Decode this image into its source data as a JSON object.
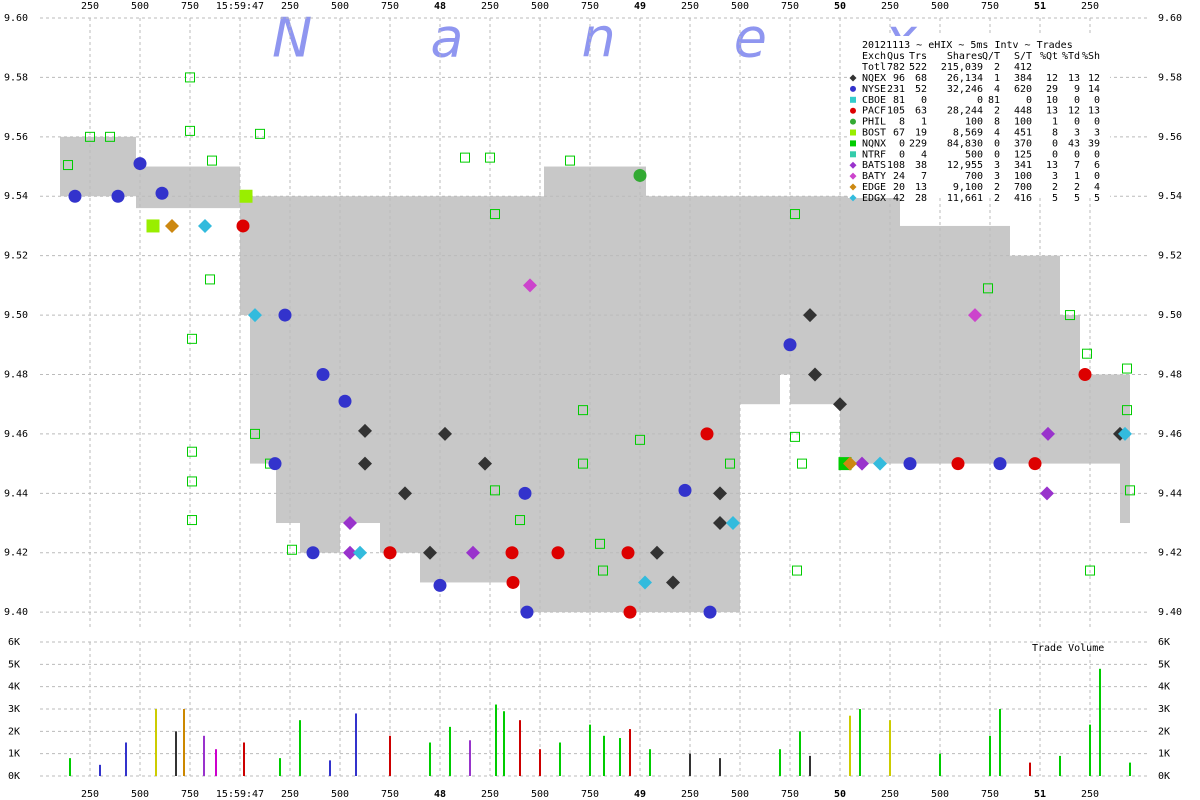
{
  "chart_data": [
    {
      "type": "scatter",
      "watermark": "Nanex",
      "xlim": [
        46.0,
        51.55
      ],
      "xticks": [
        {
          "value": 46.25,
          "label": "250"
        },
        {
          "value": 46.5,
          "label": "500"
        },
        {
          "value": 46.75,
          "label": "750"
        },
        {
          "value": 47,
          "label": "15:59:47"
        },
        {
          "value": 47.25,
          "label": "250"
        },
        {
          "value": 47.5,
          "label": "500"
        },
        {
          "value": 47.75,
          "label": "750"
        },
        {
          "value": 48,
          "label": "48"
        },
        {
          "value": 48.25,
          "label": "250"
        },
        {
          "value": 48.5,
          "label": "500"
        },
        {
          "value": 48.75,
          "label": "750"
        },
        {
          "value": 49,
          "label": "49"
        },
        {
          "value": 49.25,
          "label": "250"
        },
        {
          "value": 49.5,
          "label": "500"
        },
        {
          "value": 49.75,
          "label": "750"
        },
        {
          "value": 50,
          "label": "50"
        },
        {
          "value": 50.25,
          "label": "250"
        },
        {
          "value": 50.5,
          "label": "500"
        },
        {
          "value": 50.75,
          "label": "750"
        },
        {
          "value": 51,
          "label": "51"
        },
        {
          "value": 51.25,
          "label": "250"
        }
      ],
      "ylim": [
        9.395,
        9.6
      ],
      "yticks": [
        {
          "value": 9.4,
          "label": "9.40"
        },
        {
          "value": 9.42,
          "label": "9.42"
        },
        {
          "value": 9.44,
          "label": "9.44"
        },
        {
          "value": 9.46,
          "label": "9.46"
        },
        {
          "value": 9.48,
          "label": "9.48"
        },
        {
          "value": 9.5,
          "label": "9.50"
        },
        {
          "value": 9.52,
          "label": "9.52"
        },
        {
          "value": 9.54,
          "label": "9.54"
        },
        {
          "value": 9.56,
          "label": "9.56"
        },
        {
          "value": 9.58,
          "label": "9.58"
        },
        {
          "value": 9.6,
          "label": "9.60"
        }
      ],
      "grid": true,
      "nbbo": {
        "color": "#c8c8c8",
        "x": [
          46.1,
          46.48,
          47.0,
          47.05,
          47.18,
          47.3,
          47.5,
          47.7,
          47.9,
          48.15,
          48.4,
          48.52,
          49.0,
          49.03,
          49.5,
          49.7,
          49.75,
          50.0,
          50.3,
          50.85,
          51.1,
          51.2,
          51.4
        ],
        "bid": [
          9.54,
          9.536,
          9.5,
          9.45,
          9.43,
          9.42,
          9.43,
          9.42,
          9.41,
          9.41,
          9.4,
          9.4,
          9.4,
          9.4,
          9.47,
          9.48,
          9.47,
          9.45,
          9.45,
          9.45,
          9.45,
          9.45,
          9.43
        ],
        "ask": [
          9.56,
          9.55,
          9.54,
          9.54,
          9.54,
          9.54,
          9.54,
          9.54,
          9.54,
          9.54,
          9.54,
          9.55,
          9.55,
          9.54,
          9.54,
          9.54,
          9.54,
          9.54,
          9.53,
          9.52,
          9.5,
          9.48,
          9.48
        ]
      },
      "quotes": {
        "color": "#00cc00",
        "x": [
          46.14,
          46.25,
          46.35,
          46.75,
          46.75,
          46.86,
          47.1,
          46.85,
          46.76,
          46.76,
          46.76,
          46.76,
          47.075,
          47.15,
          47.26,
          48.125,
          48.25,
          48.275,
          48.4,
          48.715,
          48.65,
          48.8,
          48.815,
          49.0,
          49.775,
          49.775,
          49.81,
          49.785,
          51.15,
          51.235,
          51.25,
          51.435,
          51.435,
          51.45,
          50.74,
          49.45,
          48.715,
          48.275
        ],
        "y": [
          9.5505,
          9.56,
          9.56,
          9.58,
          9.562,
          9.552,
          9.561,
          9.512,
          9.492,
          9.454,
          9.444,
          9.431,
          9.46,
          9.45,
          9.421,
          9.553,
          9.553,
          9.534,
          9.431,
          9.468,
          9.552,
          9.423,
          9.414,
          9.458,
          9.534,
          9.459,
          9.45,
          9.414,
          9.5,
          9.487,
          9.414,
          9.482,
          9.468,
          9.441,
          9.509,
          9.45,
          9.45,
          9.441
        ]
      },
      "stats": {
        "title": "20121113 ~ eHIX ~ 5ms Intv ~ Trades",
        "columns": [
          "Exch",
          "Qus",
          "Trs",
          "Shares",
          "Q/T",
          "S/T",
          "%Qt",
          "%Td",
          "%Sh"
        ],
        "total": {
          "name": "Totl",
          "cells": [
            "782",
            "522",
            "215,039",
            "2",
            "412"
          ]
        }
      },
      "series": [
        {
          "name": "NQEX",
          "color": "#333333",
          "marker": "diamond",
          "cells": [
            "96",
            "68",
            "26,134",
            "1",
            "384",
            "12",
            "13",
            "12"
          ],
          "x": [
            47.625,
            47.625,
            47.825,
            47.95,
            48.025,
            48.225,
            49.085,
            49.165,
            49.4,
            49.4,
            49.85,
            50.0,
            49.875,
            51.4
          ],
          "y": [
            9.461,
            9.45,
            9.44,
            9.42,
            9.46,
            9.45,
            9.42,
            9.41,
            9.44,
            9.43,
            9.5,
            9.47,
            9.48,
            9.46
          ]
        },
        {
          "name": "NYSE",
          "color": "#3333cc",
          "marker": "circle",
          "cells": [
            "231",
            "52",
            "32,246",
            "4",
            "620",
            "29",
            "9",
            "14"
          ],
          "x": [
            46.175,
            46.39,
            46.5,
            46.61,
            47.225,
            47.175,
            47.365,
            47.525,
            47.415,
            48.0,
            48.435,
            48.425,
            49.225,
            49.35,
            49.75,
            50.35,
            50.8
          ],
          "y": [
            9.54,
            9.54,
            9.551,
            9.541,
            9.5,
            9.45,
            9.42,
            9.471,
            9.48,
            9.409,
            9.4,
            9.44,
            9.441,
            9.4,
            9.49,
            9.45,
            9.45
          ]
        },
        {
          "name": "CBOE",
          "color": "#33cccc",
          "marker": "square",
          "cells": [
            "81",
            "0",
            "0",
            "81",
            "0",
            "10",
            "0",
            "0"
          ]
        },
        {
          "name": "PACF",
          "color": "#dd0000",
          "marker": "circle",
          "cells": [
            "105",
            "63",
            "28,244",
            "2",
            "448",
            "13",
            "12",
            "13"
          ],
          "x": [
            47.015,
            47.75,
            48.36,
            48.365,
            48.59,
            48.94,
            48.95,
            50.59,
            50.975,
            51.225,
            49.335
          ],
          "y": [
            9.53,
            9.42,
            9.42,
            9.41,
            9.42,
            9.42,
            9.4,
            9.45,
            9.45,
            9.48,
            9.46
          ]
        },
        {
          "name": "PHIL",
          "color": "#33aa33",
          "marker": "circle",
          "cells": [
            "8",
            "1",
            "100",
            "8",
            "100",
            "1",
            "0",
            "0"
          ],
          "x": [
            49.0
          ],
          "y": [
            9.547
          ]
        },
        {
          "name": "BOST",
          "color": "#99ee00",
          "marker": "square",
          "cells": [
            "67",
            "19",
            "8,569",
            "4",
            "451",
            "8",
            "3",
            "3"
          ],
          "x": [
            46.565,
            47.03
          ],
          "y": [
            9.53,
            9.54
          ]
        },
        {
          "name": "NQNX",
          "color": "#00cc00",
          "marker": "square",
          "cells": [
            "0",
            "229",
            "84,830",
            "0",
            "370",
            "0",
            "43",
            "39"
          ],
          "x": [
            50.025
          ],
          "y": [
            9.45
          ]
        },
        {
          "name": "NTRF",
          "color": "#33ccaa",
          "marker": "square",
          "cells": [
            "0",
            "4",
            "500",
            "0",
            "125",
            "0",
            "0",
            "0"
          ]
        },
        {
          "name": "BATS",
          "color": "#9933cc",
          "marker": "diamond",
          "cells": [
            "108",
            "38",
            "12,955",
            "3",
            "341",
            "13",
            "7",
            "6"
          ],
          "x": [
            47.55,
            47.55,
            48.165,
            51.035,
            51.04,
            50.11
          ],
          "y": [
            9.43,
            9.42,
            9.42,
            9.44,
            9.46,
            9.45
          ]
        },
        {
          "name": "BATY",
          "color": "#cc44cc",
          "marker": "diamond",
          "cells": [
            "24",
            "7",
            "700",
            "3",
            "100",
            "3",
            "1",
            "0"
          ],
          "x": [
            48.45,
            50.675
          ],
          "y": [
            9.51,
            9.5
          ]
        },
        {
          "name": "EDGE",
          "color": "#cc8811",
          "marker": "diamond",
          "cells": [
            "20",
            "13",
            "9,100",
            "2",
            "700",
            "2",
            "2",
            "4"
          ],
          "x": [
            46.66,
            50.05
          ],
          "y": [
            9.53,
            9.45
          ]
        },
        {
          "name": "EDGX",
          "color": "#33bbdd",
          "marker": "diamond",
          "cells": [
            "42",
            "28",
            "11,661",
            "2",
            "416",
            "5",
            "5",
            "5"
          ],
          "x": [
            47.075,
            46.825,
            47.6,
            49.025,
            49.465,
            50.2,
            51.425
          ],
          "y": [
            9.5,
            9.53,
            9.42,
            9.41,
            9.43,
            9.45,
            9.46
          ]
        }
      ]
    },
    {
      "type": "bar",
      "label": "Trade Volume",
      "ylim": [
        0,
        6000
      ],
      "yticks": [
        {
          "value": 0,
          "label": "0K"
        },
        {
          "value": 1000,
          "label": "1K"
        },
        {
          "value": 2000,
          "label": "2K"
        },
        {
          "value": 3000,
          "label": "3K"
        },
        {
          "value": 4000,
          "label": "4K"
        },
        {
          "value": 5000,
          "label": "5K"
        },
        {
          "value": 6000,
          "label": "6K"
        }
      ],
      "x": [
        46.15,
        46.3,
        46.43,
        46.58,
        46.68,
        46.72,
        46.82,
        46.88,
        47.02,
        47.2,
        47.3,
        47.45,
        47.58,
        47.75,
        47.95,
        48.05,
        48.15,
        48.28,
        48.32,
        48.4,
        48.5,
        48.6,
        48.75,
        48.82,
        48.9,
        48.95,
        49.05,
        49.25,
        49.4,
        49.7,
        49.8,
        49.85,
        50.05,
        50.1,
        50.25,
        50.5,
        50.75,
        50.8,
        50.95,
        51.1,
        51.25,
        51.3,
        51.45
      ],
      "values": [
        800,
        500,
        1500,
        3000,
        2000,
        3000,
        1800,
        1200,
        1500,
        800,
        2500,
        700,
        2800,
        1800,
        1500,
        2200,
        1600,
        3200,
        2900,
        2500,
        1200,
        1500,
        2300,
        1800,
        1700,
        2100,
        1200,
        1000,
        800,
        1200,
        2000,
        900,
        2700,
        3000,
        2500,
        1000,
        1800,
        3000,
        600,
        900,
        2300,
        4800,
        600
      ],
      "colors": [
        "#00cc00",
        "#3333cc",
        "#3333cc",
        "#cccc00",
        "#333333",
        "#cc8800",
        "#9933cc",
        "#cc00cc",
        "#cc0000",
        "#00cc00",
        "#00cc00",
        "#3333cc",
        "#3333cc",
        "#cc0000",
        "#00cc00",
        "#00cc00",
        "#9933cc",
        "#00cc00",
        "#00cc00",
        "#cc0000",
        "#cc0000",
        "#00cc00",
        "#00cc00",
        "#00cc00",
        "#00cc00",
        "#cc0000",
        "#00cc00",
        "#333333",
        "#333333",
        "#00cc00",
        "#00cc00",
        "#333333",
        "#cccc00",
        "#00cc00",
        "#cccc00",
        "#00cc00",
        "#00cc00",
        "#00cc00",
        "#cc0000",
        "#00cc00",
        "#00cc00",
        "#00cc00",
        "#00cc00"
      ]
    }
  ]
}
